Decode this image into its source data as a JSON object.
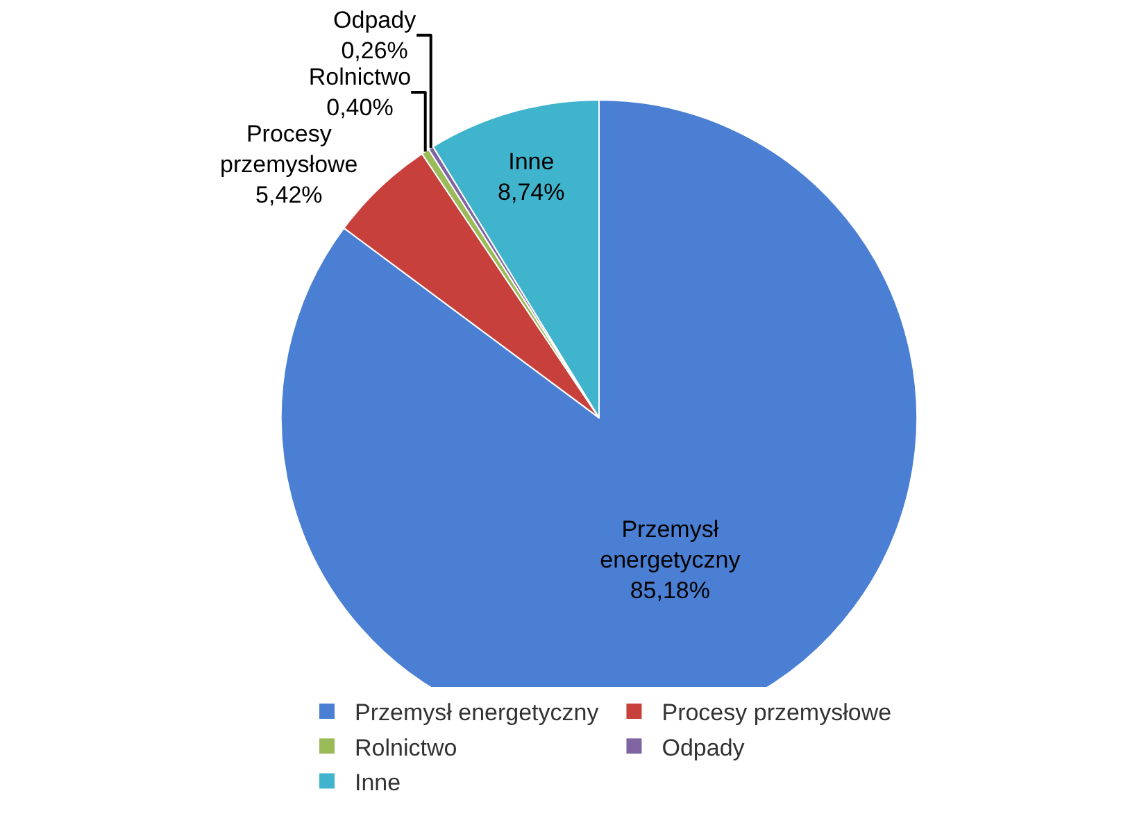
{
  "chart_data": {
    "type": "pie",
    "categories": [
      "Przemysł energetyczny",
      "Procesy przemysłowe",
      "Rolnictwo",
      "Odpady",
      "Inne"
    ],
    "values": [
      85.18,
      5.42,
      0.4,
      0.26,
      8.74
    ],
    "value_labels": [
      "85,18%",
      "5,42%",
      "0,40%",
      "0,26%",
      "8,74%"
    ],
    "colors": [
      "#4a7fd3",
      "#c8403c",
      "#9bbb59",
      "#8064a2",
      "#40b4cc"
    ],
    "legend": "bottom"
  }
}
